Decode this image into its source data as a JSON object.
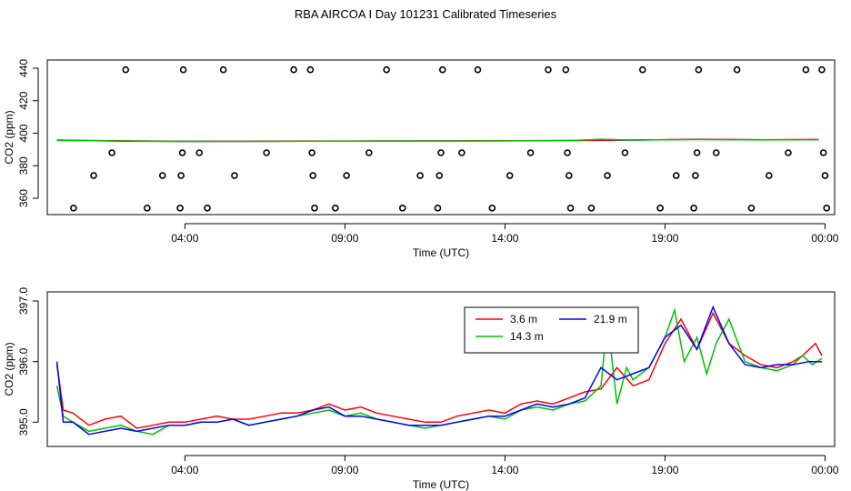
{
  "title": "RBA AIRCOA I  Day 101231  Calibrated Timeseries",
  "chart_data": [
    {
      "type": "scatter",
      "xlabel": "Time (UTC)",
      "ylabel": "CO2 (ppm)",
      "x_ticks": [
        "04:00",
        "09:00",
        "14:00",
        "19:00",
        "00:00"
      ],
      "y_ticks": [
        "360",
        "380",
        "400",
        "420",
        "440"
      ],
      "ylim": [
        350,
        445
      ],
      "xlim_hours": [
        -0.3,
        24.3
      ],
      "points": [
        {
          "t": 0.52,
          "y": 354
        },
        {
          "t": 1.15,
          "y": 374
        },
        {
          "t": 1.72,
          "y": 388
        },
        {
          "t": 2.15,
          "y": 439
        },
        {
          "t": 2.82,
          "y": 354
        },
        {
          "t": 3.3,
          "y": 374
        },
        {
          "t": 3.85,
          "y": 354
        },
        {
          "t": 3.88,
          "y": 374
        },
        {
          "t": 3.92,
          "y": 388
        },
        {
          "t": 3.95,
          "y": 439
        },
        {
          "t": 4.45,
          "y": 388
        },
        {
          "t": 4.7,
          "y": 354
        },
        {
          "t": 5.2,
          "y": 439
        },
        {
          "t": 5.55,
          "y": 374
        },
        {
          "t": 6.55,
          "y": 388
        },
        {
          "t": 7.4,
          "y": 439
        },
        {
          "t": 7.92,
          "y": 439
        },
        {
          "t": 7.97,
          "y": 388
        },
        {
          "t": 8.0,
          "y": 374
        },
        {
          "t": 8.05,
          "y": 354
        },
        {
          "t": 8.7,
          "y": 354
        },
        {
          "t": 9.05,
          "y": 374
        },
        {
          "t": 9.75,
          "y": 388
        },
        {
          "t": 10.3,
          "y": 439
        },
        {
          "t": 10.8,
          "y": 354
        },
        {
          "t": 11.35,
          "y": 374
        },
        {
          "t": 11.9,
          "y": 354
        },
        {
          "t": 11.95,
          "y": 374
        },
        {
          "t": 12.0,
          "y": 388
        },
        {
          "t": 12.05,
          "y": 439
        },
        {
          "t": 12.65,
          "y": 388
        },
        {
          "t": 13.15,
          "y": 439
        },
        {
          "t": 13.6,
          "y": 354
        },
        {
          "t": 14.15,
          "y": 374
        },
        {
          "t": 14.8,
          "y": 388
        },
        {
          "t": 15.35,
          "y": 439
        },
        {
          "t": 15.9,
          "y": 439
        },
        {
          "t": 15.95,
          "y": 388
        },
        {
          "t": 16.0,
          "y": 374
        },
        {
          "t": 16.05,
          "y": 354
        },
        {
          "t": 16.7,
          "y": 354
        },
        {
          "t": 17.2,
          "y": 374
        },
        {
          "t": 17.75,
          "y": 388
        },
        {
          "t": 18.3,
          "y": 439
        },
        {
          "t": 18.85,
          "y": 354
        },
        {
          "t": 19.35,
          "y": 374
        },
        {
          "t": 19.9,
          "y": 354
        },
        {
          "t": 19.95,
          "y": 374
        },
        {
          "t": 20.0,
          "y": 388
        },
        {
          "t": 20.05,
          "y": 439
        },
        {
          "t": 20.6,
          "y": 388
        },
        {
          "t": 21.25,
          "y": 439
        },
        {
          "t": 21.7,
          "y": 354
        },
        {
          "t": 22.25,
          "y": 374
        },
        {
          "t": 22.85,
          "y": 388
        },
        {
          "t": 23.4,
          "y": 439
        },
        {
          "t": 23.9,
          "y": 439
        },
        {
          "t": 23.95,
          "y": 388
        },
        {
          "t": 24.0,
          "y": 374
        },
        {
          "t": 24.05,
          "y": 354
        }
      ],
      "lines": [
        {
          "color": "#0000ff",
          "t": [
            0,
            2,
            4,
            6,
            8,
            10,
            12,
            14,
            16,
            18,
            19,
            20,
            21,
            22,
            23,
            23.8
          ],
          "y": [
            395.8,
            395.1,
            395.0,
            395.0,
            395.1,
            395.2,
            395.2,
            395.3,
            395.5,
            395.8,
            396.0,
            396.2,
            396.1,
            396.0,
            396.0,
            396.0
          ]
        },
        {
          "color": "#ff0000",
          "t": [
            0,
            4,
            8,
            12,
            16,
            18,
            20,
            22,
            23.8
          ],
          "y": [
            395.7,
            395.1,
            395.2,
            395.3,
            395.6,
            395.9,
            396.3,
            396.0,
            396.2
          ]
        },
        {
          "color": "#00cc00",
          "t": [
            0,
            4,
            8,
            12,
            16,
            17,
            18,
            20,
            22,
            23.8
          ],
          "y": [
            395.6,
            395.0,
            395.1,
            395.2,
            395.5,
            396.3,
            395.8,
            396.1,
            395.9,
            396.0
          ]
        }
      ]
    },
    {
      "type": "line",
      "xlabel": "Time (UTC)",
      "ylabel": "CO2 (ppm)",
      "x_ticks": [
        "04:00",
        "09:00",
        "14:00",
        "19:00",
        "00:00"
      ],
      "y_ticks": [
        "395.0",
        "396.0",
        "397.0"
      ],
      "ylim": [
        394.6,
        397.15
      ],
      "xlim_hours": [
        -0.3,
        24.3
      ],
      "legend_position": "top-right",
      "series": [
        {
          "name": "3.6 m",
          "color": "#ff0000",
          "t": [
            0,
            0.2,
            0.5,
            1,
            1.5,
            2,
            2.5,
            3,
            3.5,
            4,
            4.5,
            5,
            5.5,
            6,
            6.5,
            7,
            7.5,
            8,
            8.5,
            9,
            9.5,
            10,
            10.5,
            11,
            11.5,
            12,
            12.5,
            13,
            13.5,
            14,
            14.5,
            15,
            15.5,
            16,
            16.5,
            17,
            17.5,
            18,
            18.5,
            19,
            19.5,
            20,
            20.5,
            21,
            21.5,
            22,
            22.5,
            23,
            23.3,
            23.7,
            23.9
          ],
          "y": [
            395.95,
            395.2,
            395.15,
            394.95,
            395.05,
            395.1,
            394.9,
            394.95,
            395.0,
            395.0,
            395.05,
            395.1,
            395.05,
            395.05,
            395.1,
            395.15,
            395.15,
            395.2,
            395.3,
            395.2,
            395.25,
            395.15,
            395.1,
            395.05,
            395.0,
            395.0,
            395.1,
            395.15,
            395.2,
            395.15,
            395.3,
            395.35,
            395.3,
            395.4,
            395.5,
            395.55,
            395.9,
            395.6,
            395.7,
            396.3,
            396.7,
            396.2,
            396.8,
            396.3,
            396.1,
            395.95,
            395.9,
            396.0,
            396.1,
            396.3,
            396.1
          ]
        },
        {
          "name": "14.3 m",
          "color": "#00c000",
          "t": [
            0,
            0.2,
            0.5,
            1,
            1.5,
            2,
            2.5,
            3,
            3.5,
            4,
            4.5,
            5,
            5.5,
            6,
            6.5,
            7,
            7.5,
            8,
            8.5,
            9,
            9.5,
            10,
            10.5,
            11,
            11.5,
            12,
            12.5,
            13,
            13.5,
            14,
            14.5,
            15,
            15.5,
            16,
            16.5,
            17,
            17.2,
            17.5,
            17.8,
            18,
            18.5,
            19,
            19.3,
            19.6,
            20,
            20.3,
            20.6,
            21,
            21.5,
            22,
            22.5,
            23,
            23.3,
            23.6,
            23.9
          ],
          "y": [
            395.6,
            395.1,
            395.0,
            394.85,
            394.9,
            394.95,
            394.85,
            394.8,
            394.95,
            394.95,
            395.0,
            395.0,
            395.05,
            394.95,
            395.0,
            395.05,
            395.1,
            395.15,
            395.2,
            395.1,
            395.15,
            395.05,
            395.0,
            394.95,
            394.9,
            394.95,
            395.0,
            395.05,
            395.1,
            395.05,
            395.2,
            395.25,
            395.2,
            395.3,
            395.35,
            395.6,
            396.7,
            395.3,
            395.9,
            395.7,
            395.9,
            396.4,
            396.85,
            396.0,
            396.4,
            395.8,
            396.3,
            396.7,
            396.0,
            395.9,
            395.85,
            395.95,
            396.1,
            395.95,
            396.05
          ]
        },
        {
          "name": "21.9 m",
          "color": "#0000ff",
          "t": [
            0,
            0.2,
            0.5,
            1,
            1.5,
            2,
            2.5,
            3,
            3.5,
            4,
            4.5,
            5,
            5.5,
            6,
            6.5,
            7,
            7.5,
            8,
            8.5,
            9,
            9.5,
            10,
            10.5,
            11,
            11.5,
            12,
            12.5,
            13,
            13.5,
            14,
            14.5,
            15,
            15.5,
            16,
            16.5,
            17,
            17.5,
            18,
            18.5,
            19,
            19.5,
            20,
            20.5,
            21,
            21.5,
            22,
            22.5,
            23,
            23.5,
            23.9
          ],
          "y": [
            396.0,
            395.0,
            395.0,
            394.8,
            394.85,
            394.9,
            394.85,
            394.9,
            394.95,
            394.95,
            395.0,
            395.0,
            395.05,
            394.95,
            395.0,
            395.05,
            395.1,
            395.2,
            395.25,
            395.1,
            395.1,
            395.05,
            395.0,
            394.95,
            394.95,
            394.95,
            395.0,
            395.05,
            395.1,
            395.1,
            395.2,
            395.3,
            395.25,
            395.3,
            395.4,
            395.9,
            395.7,
            395.8,
            395.9,
            396.4,
            396.6,
            396.2,
            396.9,
            396.3,
            395.95,
            395.9,
            395.95,
            395.95,
            396.0,
            396.0
          ]
        }
      ]
    }
  ]
}
